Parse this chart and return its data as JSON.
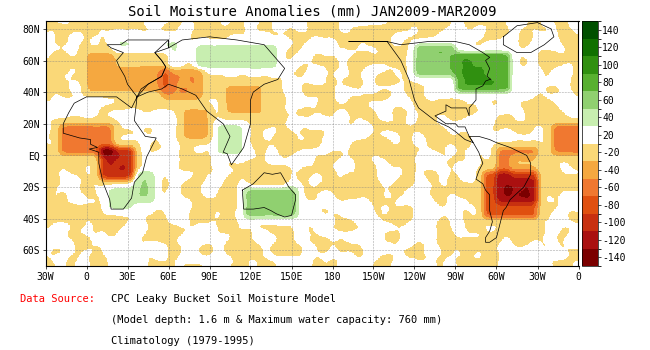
{
  "title": "Soil Moisture Anomalies (mm) JAN2009-MAR2009",
  "colorbar_levels": [
    -140,
    -120,
    -100,
    -80,
    -60,
    -40,
    -20,
    0,
    20,
    40,
    60,
    80,
    100,
    120,
    140
  ],
  "colorbar_tick_labels": [
    "-140",
    "-120",
    "-100",
    "-80",
    "-60",
    "-40",
    "-20",
    "20",
    "40",
    "60",
    "80",
    "100",
    "120",
    "140"
  ],
  "colorbar_colors": [
    "#7B0000",
    "#AA1010",
    "#C83010",
    "#E05010",
    "#F07830",
    "#F5A840",
    "#FAD878",
    "#FFFFFF",
    "#C8EEB0",
    "#90D070",
    "#58B030",
    "#309010",
    "#107000",
    "#005000"
  ],
  "data_source_label": "Data Source:",
  "data_source_label_color": "#FF0000",
  "x_tick_labels": [
    "30W",
    "0",
    "30E",
    "60E",
    "90E",
    "120E",
    "150E",
    "180",
    "150W",
    "120W",
    "90W",
    "60W",
    "30W",
    "0"
  ],
  "y_tick_labels": [
    "60S",
    "40S",
    "20S",
    "EQ",
    "20N",
    "40N",
    "60N",
    "80N"
  ],
  "bg_color": "#FFFFFF",
  "font_family": "monospace",
  "title_fontsize": 10,
  "tick_fontsize": 7,
  "colorbar_tick_fontsize": 7
}
